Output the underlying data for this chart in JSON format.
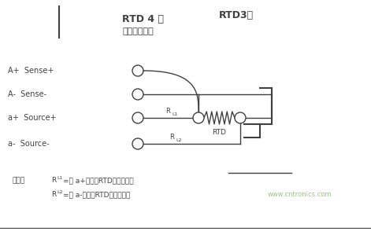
{
  "title_top": "RTD3线",
  "title_main": "RTD 4 线",
  "subtitle": "（精度最高）",
  "label_Aplus": "A+  Sense+",
  "label_Aminus": "A-  Sense-",
  "label_aplus": "a+  Source+",
  "label_aminus": "a-  Source-",
  "label_RL1": "R",
  "label_RL1_sub": "L1",
  "label_RL2": "R",
  "label_RL2_sub": "L2",
  "label_RTD": "RTD",
  "note_prefix": "注意：",
  "note_r1": "R",
  "note_r1_sub": "L1",
  "note_r1_text": "=从 a+端子到RTD的导线电阻",
  "note_r2": "R",
  "note_r2_sub": "L2",
  "note_r2_text": "=从 a-端子到RTD的导线电阻",
  "watermark": "www.cntronics.com",
  "bg_color": "#ffffff",
  "line_color": "#404040",
  "watermark_color": "#88bb66"
}
